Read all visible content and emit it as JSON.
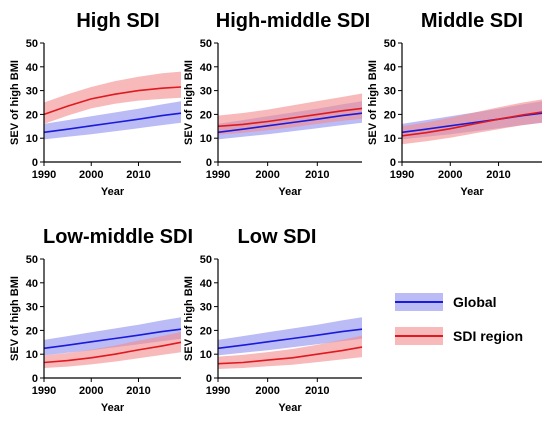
{
  "colors": {
    "global": "#1a1adb",
    "global_band": "#8d8df0",
    "region": "#e0191f",
    "region_band": "#f38a8c",
    "axis": "#000000"
  },
  "legend": {
    "global_label": "Global",
    "region_label": "SDI region"
  },
  "chart_data": [
    {
      "type": "line",
      "title": "High SDI",
      "xlabel": "Year",
      "ylabel": "SEV of high BMI",
      "xlim": [
        1990,
        2019
      ],
      "ylim": [
        0,
        50
      ],
      "x_ticks": [
        1990,
        2000,
        2010
      ],
      "y_ticks": [
        0,
        10,
        20,
        30,
        40,
        50
      ],
      "x": [
        1990,
        1995,
        2000,
        2005,
        2010,
        2015,
        2019
      ],
      "series": [
        {
          "name": "Global",
          "values": [
            12.5,
            13.8,
            15.2,
            16.6,
            18.0,
            19.5,
            20.5
          ],
          "lower": [
            9.5,
            10.6,
            11.7,
            12.9,
            14.2,
            15.5,
            16.5
          ],
          "upper": [
            16.0,
            17.6,
            19.2,
            20.8,
            22.4,
            24.2,
            25.5
          ]
        },
        {
          "name": "SDI region",
          "values": [
            20.0,
            23.5,
            26.5,
            28.5,
            30.0,
            31.0,
            31.5
          ],
          "lower": [
            16.0,
            19.5,
            22.5,
            24.5,
            25.8,
            26.5,
            27.0
          ],
          "upper": [
            25.0,
            28.5,
            31.5,
            34.0,
            35.8,
            37.3,
            38.0
          ]
        }
      ]
    },
    {
      "type": "line",
      "title": "High-middle SDI",
      "xlabel": "Year",
      "ylabel": "SEV of high BMI",
      "xlim": [
        1990,
        2019
      ],
      "ylim": [
        0,
        50
      ],
      "x_ticks": [
        1990,
        2000,
        2010
      ],
      "y_ticks": [
        0,
        10,
        20,
        30,
        40,
        50
      ],
      "x": [
        1990,
        1995,
        2000,
        2005,
        2010,
        2015,
        2019
      ],
      "series": [
        {
          "name": "Global",
          "values": [
            12.5,
            13.8,
            15.2,
            16.6,
            18.0,
            19.5,
            20.5
          ],
          "lower": [
            9.5,
            10.6,
            11.7,
            12.9,
            14.2,
            15.5,
            16.5
          ],
          "upper": [
            16.0,
            17.6,
            19.2,
            20.8,
            22.4,
            24.2,
            25.5
          ]
        },
        {
          "name": "SDI region",
          "values": [
            15.0,
            15.8,
            17.0,
            18.5,
            20.0,
            21.5,
            22.5
          ],
          "lower": [
            11.5,
            12.3,
            13.3,
            14.6,
            16.0,
            17.3,
            18.2
          ],
          "upper": [
            19.5,
            20.6,
            22.0,
            23.8,
            25.6,
            27.3,
            28.8
          ]
        }
      ]
    },
    {
      "type": "line",
      "title": "Middle SDI",
      "xlabel": "Year",
      "ylabel": "SEV of high BMI",
      "xlim": [
        1990,
        2019
      ],
      "ylim": [
        0,
        50
      ],
      "x_ticks": [
        1990,
        2000,
        2010
      ],
      "y_ticks": [
        0,
        10,
        20,
        30,
        40,
        50
      ],
      "x": [
        1990,
        1995,
        2000,
        2005,
        2010,
        2015,
        2019
      ],
      "series": [
        {
          "name": "Global",
          "values": [
            12.5,
            13.8,
            15.2,
            16.6,
            18.0,
            19.5,
            20.5
          ],
          "lower": [
            9.5,
            10.6,
            11.7,
            12.9,
            14.2,
            15.5,
            16.5
          ],
          "upper": [
            16.0,
            17.6,
            19.2,
            20.8,
            22.4,
            24.2,
            25.5
          ]
        },
        {
          "name": "SDI region",
          "values": [
            11.0,
            12.3,
            14.0,
            16.0,
            18.0,
            19.8,
            21.0
          ],
          "lower": [
            7.5,
            8.7,
            10.2,
            12.0,
            13.8,
            15.5,
            16.5
          ],
          "upper": [
            15.0,
            16.6,
            18.6,
            20.8,
            23.0,
            25.0,
            26.3
          ]
        }
      ]
    },
    {
      "type": "line",
      "title": "Low-middle SDI",
      "xlabel": "Year",
      "ylabel": "SEV of high BMI",
      "xlim": [
        1990,
        2019
      ],
      "ylim": [
        0,
        50
      ],
      "x_ticks": [
        1990,
        2000,
        2010
      ],
      "y_ticks": [
        0,
        10,
        20,
        30,
        40,
        50
      ],
      "x": [
        1990,
        1995,
        2000,
        2005,
        2010,
        2015,
        2019
      ],
      "series": [
        {
          "name": "Global",
          "values": [
            12.5,
            13.8,
            15.2,
            16.6,
            18.0,
            19.5,
            20.5
          ],
          "lower": [
            9.5,
            10.6,
            11.7,
            12.9,
            14.2,
            15.5,
            16.5
          ],
          "upper": [
            16.0,
            17.6,
            19.2,
            20.8,
            22.4,
            24.2,
            25.5
          ]
        },
        {
          "name": "SDI region",
          "values": [
            6.5,
            7.3,
            8.5,
            10.0,
            11.8,
            13.5,
            15.0
          ],
          "lower": [
            4.2,
            4.8,
            5.7,
            6.9,
            8.3,
            9.7,
            10.8
          ],
          "upper": [
            9.5,
            10.5,
            11.9,
            13.6,
            15.7,
            17.6,
            19.3
          ]
        }
      ]
    },
    {
      "type": "line",
      "title": "Low SDI",
      "xlabel": "Year",
      "ylabel": "SEV of high BMI",
      "xlim": [
        1990,
        2019
      ],
      "ylim": [
        0,
        50
      ],
      "x_ticks": [
        1990,
        2000,
        2010
      ],
      "y_ticks": [
        0,
        10,
        20,
        30,
        40,
        50
      ],
      "x": [
        1990,
        1995,
        2000,
        2005,
        2010,
        2015,
        2019
      ],
      "series": [
        {
          "name": "Global",
          "values": [
            12.5,
            13.8,
            15.2,
            16.6,
            18.0,
            19.5,
            20.5
          ],
          "lower": [
            9.5,
            10.6,
            11.7,
            12.9,
            14.2,
            15.5,
            16.5
          ],
          "upper": [
            16.0,
            17.6,
            19.2,
            20.8,
            22.4,
            24.2,
            25.5
          ]
        },
        {
          "name": "SDI region",
          "values": [
            6.0,
            6.5,
            7.5,
            8.5,
            10.0,
            11.5,
            13.0
          ],
          "lower": [
            3.8,
            4.2,
            4.9,
            5.6,
            6.7,
            7.8,
            8.8
          ],
          "upper": [
            9.0,
            9.7,
            10.9,
            12.2,
            14.0,
            16.0,
            17.8
          ]
        }
      ]
    }
  ]
}
